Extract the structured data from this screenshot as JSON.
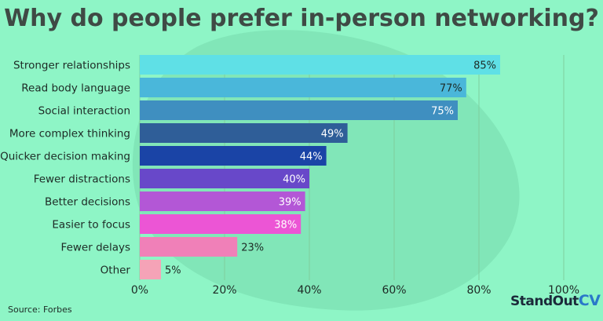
{
  "title": "Why do people prefer in-person networking?",
  "source": "Source: Forbes",
  "brand": {
    "name": "StandOut",
    "suffix": "CV"
  },
  "colors": {
    "background": "#8ef5c6",
    "blob": "#7fe3b5",
    "grid": "#7ecf9d",
    "title": "#3f4a45",
    "label": "#1d2a25"
  },
  "chart_data": {
    "type": "bar",
    "orientation": "horizontal",
    "title": "Why do people prefer in-person networking?",
    "categories": [
      "Stronger relationships",
      "Read body language",
      "Social interaction",
      "More complex thinking",
      "Quicker decision making",
      "Fewer distractions",
      "Better decisions",
      "Easier to focus",
      "Fewer delays",
      "Other"
    ],
    "values": [
      85,
      77,
      75,
      49,
      44,
      40,
      39,
      38,
      23,
      5
    ],
    "value_labels": [
      "85%",
      "77%",
      "75%",
      "49%",
      "44%",
      "40%",
      "39%",
      "38%",
      "23%",
      "5%"
    ],
    "bar_colors": [
      "#5fe0e6",
      "#4ab7da",
      "#3f8fc0",
      "#2f5e98",
      "#1a44a6",
      "#6848c9",
      "#b357d6",
      "#ec55d5",
      "#f080b8",
      "#f5a3b7"
    ],
    "label_colors": [
      "#1d2a25",
      "#1d2a25",
      "#ffffff",
      "#ffffff",
      "#ffffff",
      "#ffffff",
      "#ffffff",
      "#ffffff",
      "#1d2a25",
      "#1d2a25"
    ],
    "xlim": [
      0,
      100
    ],
    "xticks": [
      "0%",
      "20%",
      "40%",
      "60%",
      "80%",
      "100%"
    ],
    "grid": true,
    "legend": "none"
  }
}
